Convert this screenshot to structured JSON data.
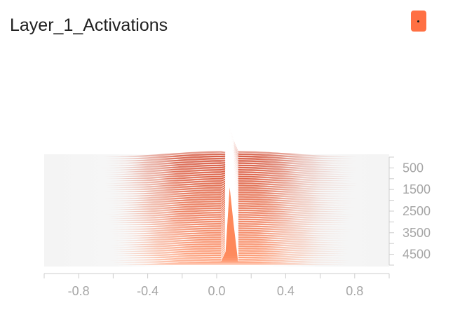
{
  "panel": {
    "title": "Layer_1_Activations"
  },
  "chart_data": {
    "type": "area",
    "title": "Layer_1_Activations",
    "xlabel": "",
    "ylabel": "",
    "xlim": [
      -1.0,
      1.0
    ],
    "x_ticks": [
      -0.8,
      -0.4,
      0.0,
      0.4,
      0.8
    ],
    "x_tick_labels": [
      "-0.8",
      "-0.4",
      "0.0",
      "0.4",
      "0.8"
    ],
    "y_ticks": [
      500,
      1500,
      2500,
      3500,
      4500
    ],
    "y_tick_labels": [
      "500",
      "1500",
      "2500",
      "3500",
      "4500"
    ],
    "step_range": [
      0,
      5000
    ],
    "colors": {
      "recent": "#ff8a5c",
      "oldest": "#d0482f",
      "badge": "#ff7043",
      "axis": "#cccccc",
      "grid": "#e6e6e6"
    },
    "grid": false,
    "legend": "none"
  }
}
